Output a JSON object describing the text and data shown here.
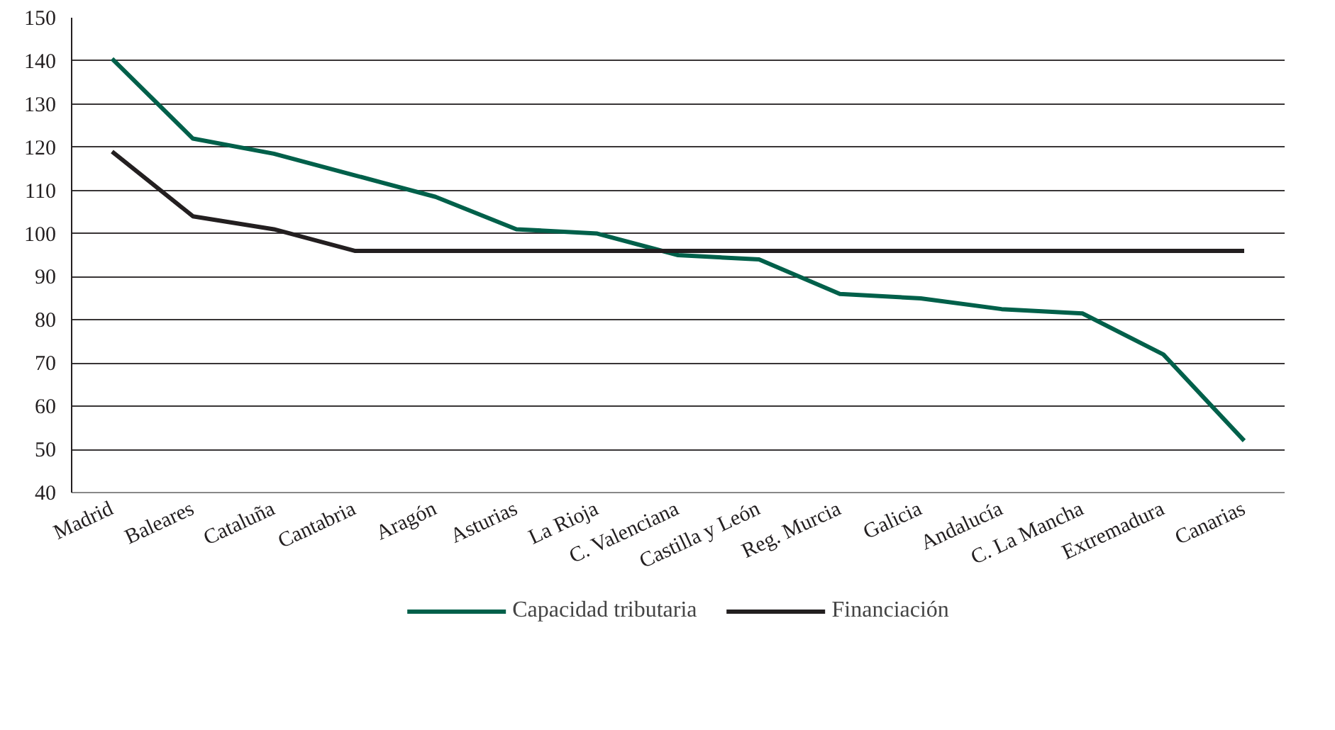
{
  "chart_data": {
    "type": "line",
    "categories": [
      "Madrid",
      "Baleares",
      "Cataluña",
      "Cantabria",
      "Aragón",
      "Asturias",
      "La Rioja",
      "C. Valenciana",
      "Castilla y León",
      "Reg. Murcia",
      "Galicia",
      "Andalucía",
      "C. La Mancha",
      "Extremadura",
      "Canarias"
    ],
    "series": [
      {
        "name": "Capacidad tributaria",
        "color": "#00604a",
        "values": [
          140.5,
          122,
          118.5,
          113.5,
          108.5,
          101,
          100,
          95,
          94,
          86,
          85,
          82.5,
          81.5,
          72,
          52
        ]
      },
      {
        "name": "Financiación",
        "color": "#231f20",
        "values": [
          119,
          104,
          101,
          96,
          96,
          96,
          96,
          96,
          96,
          96,
          96,
          96,
          96,
          96,
          96
        ]
      }
    ],
    "ylim": [
      40,
      150
    ],
    "yticks": [
      40,
      50,
      60,
      70,
      80,
      90,
      100,
      110,
      120,
      130,
      140,
      150
    ],
    "grid": "y",
    "legend": "bottom",
    "marker": "none",
    "line_style": "solid"
  }
}
